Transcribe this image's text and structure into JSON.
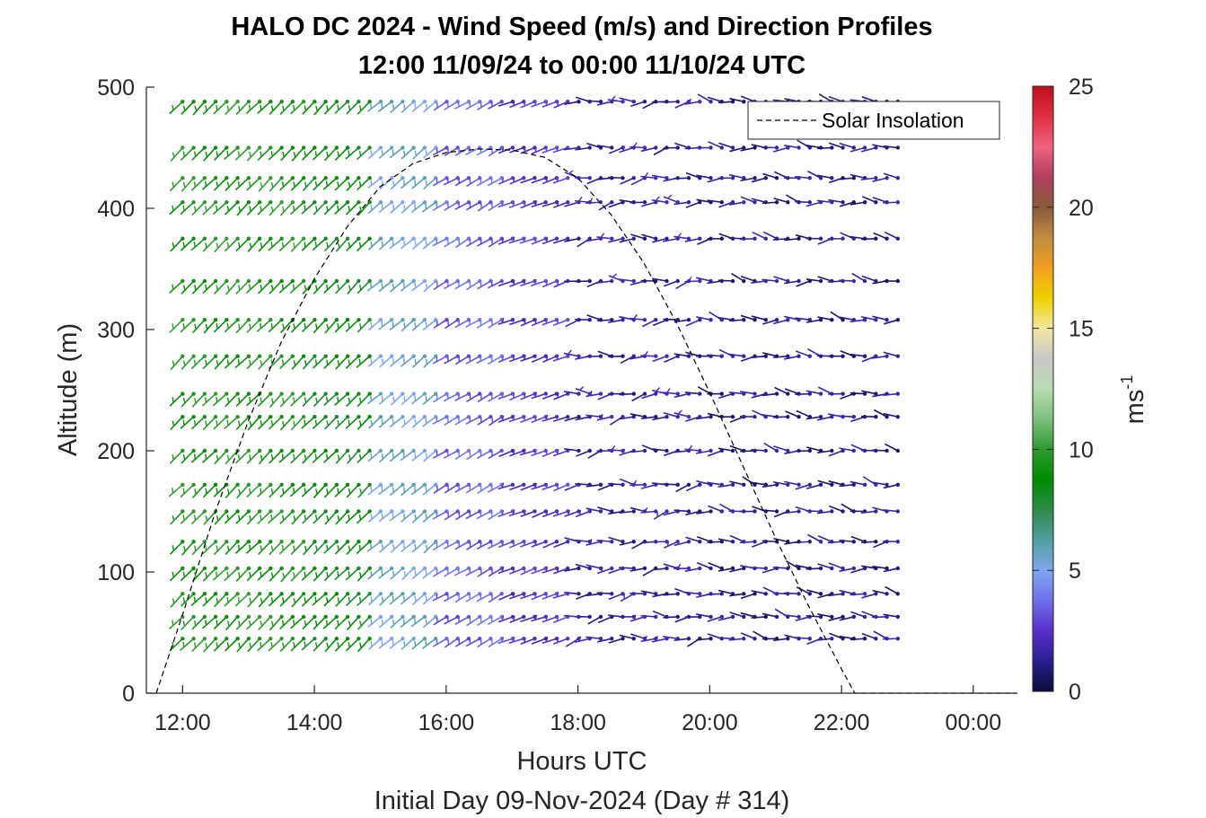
{
  "chart_data": {
    "type": "wind-barb-profile",
    "title_line1": "HALO DC 2024 - Wind Speed (m/s) and Direction Profiles",
    "title_line2": "12:00 11/09/24 to 00:00 11/10/24  UTC",
    "xlabel": "Hours UTC",
    "xsublabel": "Initial Day 09-Nov-2024 (Day # 314)",
    "ylabel": "Altitude (m)",
    "x_ticks": [
      "12:00",
      "14:00",
      "16:00",
      "18:00",
      "20:00",
      "22:00",
      "00:00"
    ],
    "x_tick_hours": [
      12,
      14,
      16,
      18,
      20,
      22,
      24
    ],
    "xlim": [
      11.45,
      24.67
    ],
    "y_ticks": [
      "0",
      "100",
      "200",
      "300",
      "400",
      "500"
    ],
    "ylim": [
      0,
      500
    ],
    "legend": {
      "label": "Solar Insolation",
      "location": "top-right"
    },
    "colorbar": {
      "label": "ms",
      "exponent": "-1",
      "range": [
        0,
        25
      ],
      "ticks": [
        "0",
        "5",
        "10",
        "15",
        "20",
        "25"
      ],
      "colors": [
        "#0a0a3a",
        "#2a1f8f",
        "#5a2fc8",
        "#6f6fe8",
        "#7fa8f0",
        "#4f9fa0",
        "#2e8a4a",
        "#008a00",
        "#2e9a2e",
        "#7cc07c",
        "#b8dcb0",
        "#c8c8c8",
        "#f0e6a0",
        "#f0d000",
        "#f0a020",
        "#c08a40",
        "#8a5a3a",
        "#b04060",
        "#f06080",
        "#e03040",
        "#c01020"
      ]
    },
    "solar_insolation": {
      "style": "dashed",
      "points": [
        [
          11.6,
          0
        ],
        [
          12.0,
          65
        ],
        [
          12.5,
          150
        ],
        [
          13.0,
          225
        ],
        [
          13.5,
          290
        ],
        [
          14.0,
          342
        ],
        [
          14.5,
          385
        ],
        [
          15.0,
          418
        ],
        [
          15.5,
          437
        ],
        [
          16.0,
          446
        ],
        [
          16.5,
          449
        ],
        [
          17.0,
          448
        ],
        [
          17.5,
          442
        ],
        [
          18.0,
          425
        ],
        [
          18.5,
          395
        ],
        [
          19.0,
          355
        ],
        [
          19.5,
          305
        ],
        [
          20.0,
          248
        ],
        [
          20.5,
          188
        ],
        [
          21.0,
          128
        ],
        [
          21.5,
          72
        ],
        [
          22.0,
          20
        ],
        [
          22.2,
          0
        ],
        [
          24.67,
          0
        ]
      ]
    },
    "barb_altitudes": [
      45,
      63,
      82,
      103,
      125,
      150,
      172,
      200,
      228,
      247,
      278,
      308,
      340,
      375,
      405,
      425,
      450,
      488
    ],
    "barb_time_range": [
      12.0,
      23.0
    ],
    "barb_time_step": 0.167,
    "wind_regimes": [
      {
        "hours": [
          12.0,
          14.0
        ],
        "speed_ms": 9.5,
        "direction_deg": 225
      },
      {
        "hours": [
          14.0,
          15.0
        ],
        "speed_ms": 8.5,
        "direction_deg": 225
      },
      {
        "hours": [
          15.0,
          16.0
        ],
        "speed_ms": 5.5,
        "direction_deg": 230
      },
      {
        "hours": [
          16.0,
          17.0
        ],
        "speed_ms": 3.5,
        "direction_deg": 240
      },
      {
        "hours": [
          17.0,
          18.0
        ],
        "speed_ms": 2.5,
        "direction_deg": 250
      },
      {
        "hours": [
          18.0,
          20.0
        ],
        "speed_ms": 1.5,
        "direction_deg": 265
      },
      {
        "hours": [
          20.0,
          23.0
        ],
        "speed_ms": 1.2,
        "direction_deg": 275
      }
    ]
  }
}
